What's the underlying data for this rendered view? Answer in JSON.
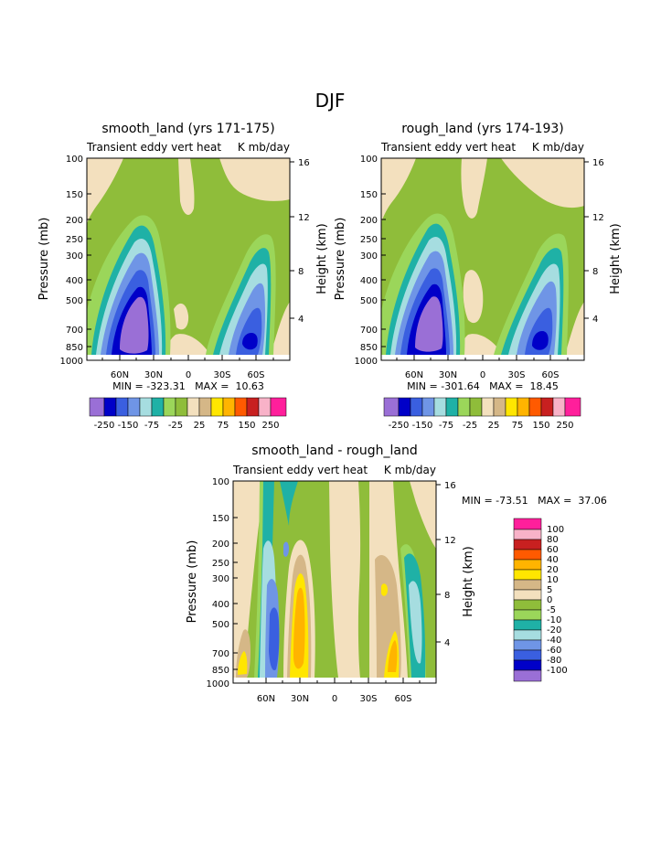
{
  "page_title": "DJF",
  "chart_data": [
    {
      "id": "smooth",
      "type": "contour",
      "title": "smooth_land (yrs 171-175)",
      "subtitle_left": "Transient eddy vert heat",
      "subtitle_right": "K mb/day",
      "ylabel": "Pressure (mb)",
      "y2label": "Height (km)",
      "x_ticks": [
        "60N",
        "30N",
        "0",
        "30S",
        "60S"
      ],
      "y_ticks": [
        "100",
        "150",
        "200",
        "250",
        "300",
        "400",
        "500",
        "700",
        "850",
        "1000"
      ],
      "y2_ticks": [
        "16",
        "12",
        "8",
        "4"
      ],
      "stats": "MIN = -323.31   MAX =  10.63",
      "min": -323.31,
      "max": 10.63,
      "colorbar_labels": [
        "-250",
        "-150",
        "-75",
        "-25",
        "25",
        "75",
        "150",
        "250"
      ]
    },
    {
      "id": "rough",
      "type": "contour",
      "title": "rough_land (yrs 174-193)",
      "subtitle_left": "Transient eddy vert heat",
      "subtitle_right": "K mb/day",
      "ylabel": "Pressure (mb)",
      "y2label": "Height (km)",
      "x_ticks": [
        "60N",
        "30N",
        "0",
        "30S",
        "60S"
      ],
      "y_ticks": [
        "100",
        "150",
        "200",
        "250",
        "300",
        "400",
        "500",
        "700",
        "850",
        "1000"
      ],
      "y2_ticks": [
        "16",
        "12",
        "8",
        "4"
      ],
      "stats": "MIN = -301.64   MAX =  18.45",
      "min": -301.64,
      "max": 18.45,
      "colorbar_labels": [
        "-250",
        "-150",
        "-75",
        "-25",
        "25",
        "75",
        "150",
        "250"
      ]
    },
    {
      "id": "diff",
      "type": "contour",
      "title": "smooth_land - rough_land",
      "subtitle_left": "Transient eddy vert heat",
      "subtitle_right": "K mb/day",
      "ylabel": "Pressure (mb)",
      "y2label": "Height (km)",
      "x_ticks": [
        "60N",
        "30N",
        "0",
        "30S",
        "60S"
      ],
      "y_ticks": [
        "100",
        "150",
        "200",
        "250",
        "300",
        "400",
        "500",
        "700",
        "850",
        "1000"
      ],
      "y2_ticks": [
        "16",
        "12",
        "8",
        "4"
      ],
      "stats": "MIN = -73.51   MAX =  37.06",
      "min": -73.51,
      "max": 37.06,
      "colorbar_labels": [
        "100",
        "80",
        "60",
        "40",
        "20",
        "10",
        "5",
        "0",
        "-5",
        "-10",
        "-20",
        "-40",
        "-60",
        "-80",
        "-100"
      ]
    }
  ],
  "colors": {
    "main_palette": [
      "#9a6fd6",
      "#0000c8",
      "#3a5fe0",
      "#6f95e6",
      "#a6dde0",
      "#1fb1a6",
      "#9bd65a",
      "#8fbd3a",
      "#f3e0be",
      "#d5b787",
      "#ffe600",
      "#ffb400",
      "#ff5a00",
      "#c82020",
      "#f8b2c8",
      "#ff1f9b"
    ],
    "diff_palette": [
      "#ff1f9b",
      "#f8b2c8",
      "#c82020",
      "#ff5a00",
      "#ffb400",
      "#ffe600",
      "#d5b787",
      "#f3e0be",
      "#8fbd3a",
      "#9bd65a",
      "#1fb1a6",
      "#a6dde0",
      "#6f95e6",
      "#3a5fe0",
      "#0000c8",
      "#9a6fd6"
    ]
  }
}
